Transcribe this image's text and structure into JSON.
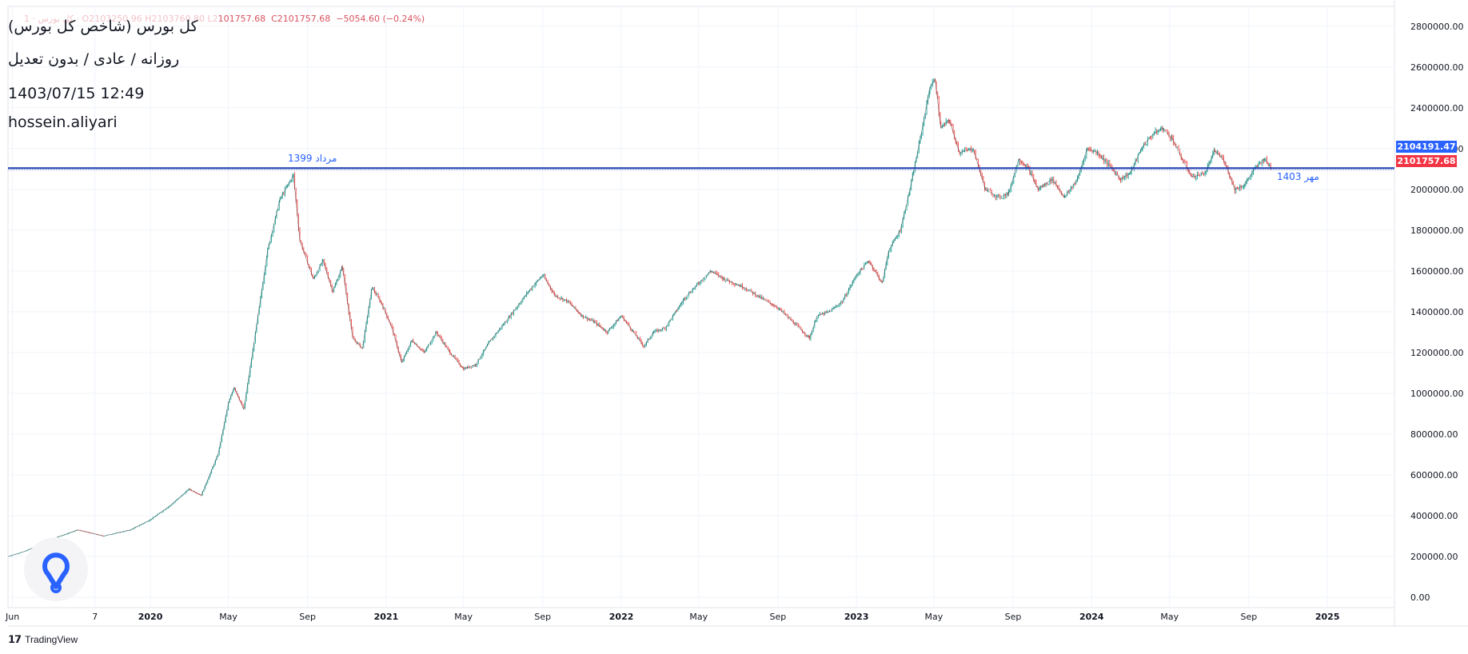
{
  "ohlc": {
    "faded_prefix": "1 · کل بورس · O2103250.96 H2103760.80 L2",
    "low_tail": "101757.68",
    "close_label": "C",
    "close": "2101757.68",
    "change": "−5054.60 (−0.24%)"
  },
  "info": {
    "title": "کل بورس (شاخص کل بورس)",
    "subtitle": "روزانه / عادی / بدون تعدیل",
    "datetime": "1403/07/15 12:49",
    "author": "hossein.aliyari"
  },
  "price_tags": {
    "line": "2104191.47",
    "last": "2101757.68"
  },
  "annotations": {
    "left_label": "مرداد 1399",
    "right_label": "مهر 1403"
  },
  "footer": {
    "icon": "tradingview-logo-icon",
    "brand": "TradingView"
  },
  "colors": {
    "up": "#26a69a",
    "down": "#ef5350",
    "bars": "#131722",
    "hline": "#1e3fb0",
    "line_tag": "#2962ff",
    "last_tag": "#f23645",
    "logo": "#2962ff"
  },
  "chart_data": {
    "type": "line",
    "title": "کل بورس (شاخص کل بورس)",
    "y_range": [
      0,
      2850000
    ],
    "y_ticks": [
      "2800000.00",
      "2600000.00",
      "2400000.00",
      "2200000.00",
      "2000000.00",
      "1800000.00",
      "1600000.00",
      "1400000.00",
      "1200000.00",
      "1000000.00",
      "800000.00",
      "600000.00",
      "400000.00",
      "200000.00",
      "0.00"
    ],
    "x_range": [
      "2019-05-25",
      "2025-04-15"
    ],
    "x_ticks": [
      {
        "date": "2019-06-01",
        "label": "Jun"
      },
      {
        "date": "2019-10-07",
        "label": "7"
      },
      {
        "date": "2020-01-01",
        "label": "2020"
      },
      {
        "date": "2020-05-01",
        "label": "May"
      },
      {
        "date": "2020-09-01",
        "label": "Sep"
      },
      {
        "date": "2021-01-01",
        "label": "2021"
      },
      {
        "date": "2021-05-01",
        "label": "May"
      },
      {
        "date": "2021-09-01",
        "label": "Sep"
      },
      {
        "date": "2022-01-01",
        "label": "2022"
      },
      {
        "date": "2022-05-01",
        "label": "May"
      },
      {
        "date": "2022-09-01",
        "label": "Sep"
      },
      {
        "date": "2023-01-01",
        "label": "2023"
      },
      {
        "date": "2023-05-01",
        "label": "May"
      },
      {
        "date": "2023-09-01",
        "label": "Sep"
      },
      {
        "date": "2024-01-01",
        "label": "2024"
      },
      {
        "date": "2024-05-01",
        "label": "May"
      },
      {
        "date": "2024-09-01",
        "label": "Sep"
      },
      {
        "date": "2025-01-01",
        "label": "2025"
      }
    ],
    "horizontal_line": 2104191.47,
    "last_price": 2101757.68,
    "series": [
      {
        "values": [
          [
            "2019-05-25",
            200000
          ],
          [
            "2019-06-20",
            225000
          ],
          [
            "2019-08-01",
            285000
          ],
          [
            "2019-09-10",
            330000
          ],
          [
            "2019-10-20",
            300000
          ],
          [
            "2019-12-01",
            330000
          ],
          [
            "2020-01-01",
            380000
          ],
          [
            "2020-02-01",
            450000
          ],
          [
            "2020-03-01",
            530000
          ],
          [
            "2020-03-20",
            500000
          ],
          [
            "2020-04-15",
            700000
          ],
          [
            "2020-05-01",
            950000
          ],
          [
            "2020-05-10",
            1030000
          ],
          [
            "2020-05-25",
            920000
          ],
          [
            "2020-06-10",
            1250000
          ],
          [
            "2020-07-01",
            1700000
          ],
          [
            "2020-07-20",
            1950000
          ],
          [
            "2020-08-10",
            2070000
          ],
          [
            "2020-08-20",
            1750000
          ],
          [
            "2020-09-10",
            1560000
          ],
          [
            "2020-09-25",
            1650000
          ],
          [
            "2020-10-10",
            1500000
          ],
          [
            "2020-10-25",
            1620000
          ],
          [
            "2020-11-10",
            1270000
          ],
          [
            "2020-11-25",
            1220000
          ],
          [
            "2020-12-10",
            1520000
          ],
          [
            "2020-12-25",
            1440000
          ],
          [
            "2021-01-10",
            1320000
          ],
          [
            "2021-01-25",
            1150000
          ],
          [
            "2021-02-10",
            1260000
          ],
          [
            "2021-03-01",
            1200000
          ],
          [
            "2021-03-20",
            1300000
          ],
          [
            "2021-04-10",
            1200000
          ],
          [
            "2021-05-01",
            1120000
          ],
          [
            "2021-05-20",
            1140000
          ],
          [
            "2021-06-10",
            1250000
          ],
          [
            "2021-07-10",
            1370000
          ],
          [
            "2021-08-10",
            1500000
          ],
          [
            "2021-09-01",
            1580000
          ],
          [
            "2021-09-20",
            1480000
          ],
          [
            "2021-10-10",
            1450000
          ],
          [
            "2021-11-01",
            1380000
          ],
          [
            "2021-11-20",
            1350000
          ],
          [
            "2021-12-10",
            1300000
          ],
          [
            "2022-01-01",
            1380000
          ],
          [
            "2022-01-20",
            1300000
          ],
          [
            "2022-02-05",
            1230000
          ],
          [
            "2022-02-20",
            1300000
          ],
          [
            "2022-03-10",
            1320000
          ],
          [
            "2022-04-10",
            1470000
          ],
          [
            "2022-05-01",
            1540000
          ],
          [
            "2022-05-20",
            1600000
          ],
          [
            "2022-06-10",
            1560000
          ],
          [
            "2022-07-10",
            1520000
          ],
          [
            "2022-08-10",
            1460000
          ],
          [
            "2022-09-01",
            1420000
          ],
          [
            "2022-10-01",
            1330000
          ],
          [
            "2022-10-20",
            1270000
          ],
          [
            "2022-11-01",
            1380000
          ],
          [
            "2022-11-20",
            1400000
          ],
          [
            "2022-12-10",
            1450000
          ],
          [
            "2023-01-01",
            1580000
          ],
          [
            "2023-01-20",
            1650000
          ],
          [
            "2023-02-10",
            1540000
          ],
          [
            "2023-02-20",
            1700000
          ],
          [
            "2023-03-10",
            1800000
          ],
          [
            "2023-03-25",
            2000000
          ],
          [
            "2023-04-10",
            2250000
          ],
          [
            "2023-04-25",
            2500000
          ],
          [
            "2023-05-03",
            2540000
          ],
          [
            "2023-05-12",
            2300000
          ],
          [
            "2023-05-25",
            2340000
          ],
          [
            "2023-06-10",
            2180000
          ],
          [
            "2023-07-01",
            2200000
          ],
          [
            "2023-07-20",
            2000000
          ],
          [
            "2023-08-10",
            1960000
          ],
          [
            "2023-08-25",
            1980000
          ],
          [
            "2023-09-10",
            2150000
          ],
          [
            "2023-09-25",
            2100000
          ],
          [
            "2023-10-10",
            2000000
          ],
          [
            "2023-11-01",
            2050000
          ],
          [
            "2023-11-20",
            1960000
          ],
          [
            "2023-12-10",
            2050000
          ],
          [
            "2023-12-25",
            2200000
          ],
          [
            "2024-01-10",
            2180000
          ],
          [
            "2024-01-25",
            2130000
          ],
          [
            "2024-02-15",
            2050000
          ],
          [
            "2024-03-01",
            2080000
          ],
          [
            "2024-03-20",
            2210000
          ],
          [
            "2024-04-05",
            2270000
          ],
          [
            "2024-04-20",
            2300000
          ],
          [
            "2024-05-05",
            2250000
          ],
          [
            "2024-05-20",
            2150000
          ],
          [
            "2024-06-05",
            2060000
          ],
          [
            "2024-06-25",
            2080000
          ],
          [
            "2024-07-10",
            2190000
          ],
          [
            "2024-07-25",
            2140000
          ],
          [
            "2024-08-10",
            2000000
          ],
          [
            "2024-08-25",
            2020000
          ],
          [
            "2024-09-10",
            2100000
          ],
          [
            "2024-09-25",
            2150000
          ],
          [
            "2024-10-06",
            2101757.68
          ]
        ]
      }
    ]
  }
}
